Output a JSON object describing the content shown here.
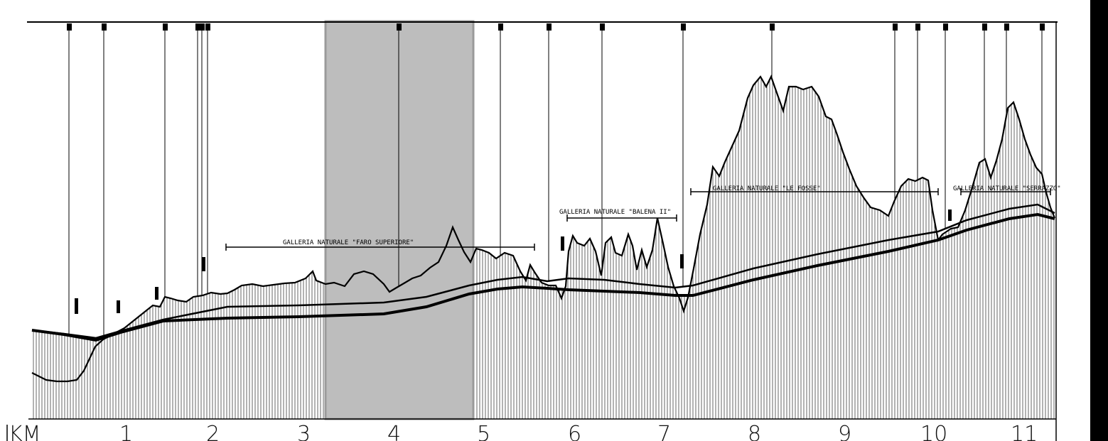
{
  "km_axis": {
    "label": "KM",
    "ticks": [
      "1",
      "2",
      "3",
      "4",
      "5",
      "6",
      "7",
      "8",
      "9",
      "10",
      "11"
    ]
  },
  "tunnels": [
    {
      "name": "GALLERIA NATURALE \"FARO SUPERIORE\""
    },
    {
      "name": "GALLERIA NATURALE \"BALENA II\""
    },
    {
      "name": "GALLERIA NATURALE \"LE FOSSE\""
    },
    {
      "name": "GALLERIA NATURALE \"SERRAZZO\""
    }
  ],
  "colors": {
    "ink": "#000000",
    "highlight": "#bdbdbd",
    "highlight_border": "#9a9a9a",
    "side_bar": "#000000"
  }
}
